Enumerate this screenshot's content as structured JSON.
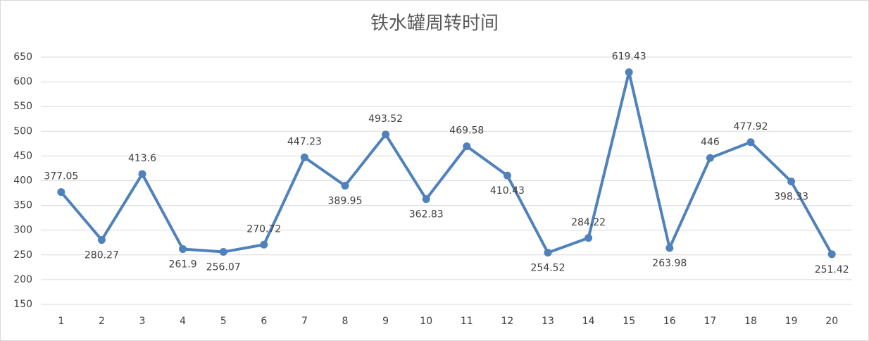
{
  "chart_data": {
    "type": "line",
    "title": "铁水罐周转时间",
    "categories": [
      "1",
      "2",
      "3",
      "4",
      "5",
      "6",
      "7",
      "8",
      "9",
      "10",
      "11",
      "12",
      "13",
      "14",
      "15",
      "16",
      "17",
      "18",
      "19",
      "20"
    ],
    "values": [
      377.05,
      280.27,
      413.6,
      261.9,
      256.07,
      270.72,
      447.23,
      389.95,
      493.52,
      362.83,
      469.58,
      410.43,
      254.52,
      284.22,
      619.43,
      263.98,
      446,
      477.92,
      398.33,
      251.42
    ],
    "color": "#4f81bd",
    "ylim": [
      150,
      650
    ],
    "yticks": [
      150,
      200,
      250,
      300,
      350,
      400,
      450,
      500,
      550,
      600,
      650
    ],
    "grid": true
  }
}
